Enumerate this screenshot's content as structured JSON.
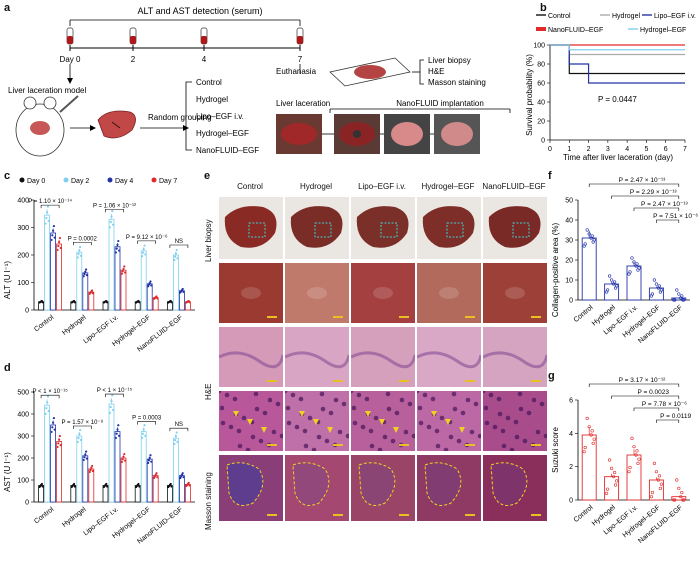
{
  "panel_a": {
    "label": "a",
    "timeline_title": "ALT and AST detection (serum)",
    "days": [
      "Day 0",
      "2",
      "4",
      "7"
    ],
    "model": "Liver laceration model",
    "grouping": "Random grouping",
    "groups": [
      "Control",
      "Hydrogel",
      "Lipo–EGF i.v.",
      "Hydrogel–EGF",
      "NanoFLUID–EGF"
    ],
    "euthanasia": "Euthanasia",
    "analyses": [
      "Liver biopsy",
      "H&E",
      "Masson staining"
    ],
    "photo_label_1": "Liver laceration",
    "photo_label_2": "NanoFLUID implantation"
  },
  "panel_b": {
    "label": "b",
    "legend": [
      "Control",
      "Hydrogel",
      "Lipo–EGF i.v.",
      "NanoFLUID–EGF",
      "Hydrogel–EGF"
    ],
    "pvalue": "P = 0.0447",
    "xlabel": "Time after liver laceration (day)",
    "ylabel": "Survival probability (%)"
  },
  "panel_c": {
    "label": "c",
    "ylabel": "ALT (U l⁻¹)",
    "legend": [
      "Day 0",
      "Day 2",
      "Day 4",
      "Day 7"
    ],
    "pvals": [
      "P = 1.10 × 10⁻¹⁴",
      "P = 0.0002",
      "P = 1.06 × 10⁻¹²",
      "P = 9.12 × 10⁻⁶",
      "NS"
    ]
  },
  "panel_d": {
    "label": "d",
    "ylabel": "AST (U l⁻¹)",
    "pvals": [
      "P < 1 × 10⁻¹⁵",
      "P = 1.57 × 10⁻⁸",
      "P < 1 × 10⁻¹⁵",
      "P = 0.0003",
      "NS"
    ]
  },
  "panel_e": {
    "label": "e",
    "rows": [
      "Liver biopsy",
      "H&E",
      "Masson staining"
    ]
  },
  "panel_f": {
    "label": "f",
    "ylabel": "Collagen-positive area (%)",
    "pvals": [
      "P = 2.47 × 10⁻¹³",
      "P = 2.29 × 10⁻¹³",
      "P = 2.47 × 10⁻¹³",
      "P = 7.51 × 10⁻⁶"
    ]
  },
  "panel_g": {
    "label": "g",
    "ylabel": "Suzuki score",
    "pvals": [
      "P = 3.17 × 10⁻¹²",
      "P = 0.0023",
      "P = 7.78 × 10⁻⁶",
      "P = 0.0119"
    ]
  },
  "colors": {
    "day0": "#111111",
    "day2": "#7fd0ee",
    "day4": "#2434a8",
    "day7": "#e02b2b"
  },
  "chart_data": [
    {
      "type": "line",
      "panel": "b",
      "x": [
        0,
        1,
        2,
        3,
        4,
        5,
        6,
        7
      ],
      "xlim": [
        0,
        7
      ],
      "ylim": [
        0,
        100
      ],
      "xticks": [
        0,
        1,
        2,
        3,
        4,
        5,
        6,
        7
      ],
      "yticks": [
        0,
        20,
        40,
        60,
        80,
        100
      ],
      "series": [
        {
          "name": "Control",
          "values": [
            100,
            70,
            70,
            70,
            70,
            70,
            70,
            70
          ],
          "color": "#111111"
        },
        {
          "name": "Hydrogel",
          "values": [
            100,
            90,
            90,
            90,
            90,
            90,
            90,
            90
          ],
          "color": "#aaaaaa"
        },
        {
          "name": "Lipo–EGF i.v.",
          "values": [
            100,
            80,
            60,
            60,
            60,
            60,
            60,
            60
          ],
          "color": "#2434a8"
        },
        {
          "name": "NanoFLUID–EGF",
          "values": [
            100,
            100,
            100,
            100,
            100,
            100,
            100,
            100
          ],
          "color": "#e02b2b"
        },
        {
          "name": "Hydrogel–EGF",
          "values": [
            100,
            95,
            95,
            95,
            95,
            95,
            95,
            95
          ],
          "color": "#7fd0ee"
        }
      ]
    },
    {
      "type": "bar",
      "panel": "c",
      "categories": [
        "Control",
        "Hydrogel",
        "Lipo–EGF i.v.",
        "Hydrogel–EGF",
        "NanoFLUID–EGF"
      ],
      "ylim": [
        0,
        400
      ],
      "yticks": [
        0,
        100,
        200,
        300,
        400
      ],
      "series": [
        {
          "name": "Day 0",
          "values": [
            30,
            30,
            30,
            30,
            30
          ]
        },
        {
          "name": "Day 2",
          "values": [
            345,
            210,
            330,
            215,
            200
          ]
        },
        {
          "name": "Day 4",
          "values": [
            280,
            135,
            230,
            95,
            70
          ]
        },
        {
          "name": "Day 7",
          "values": [
            240,
            65,
            145,
            45,
            30
          ]
        }
      ]
    },
    {
      "type": "bar",
      "panel": "d",
      "categories": [
        "Control",
        "Hydrogel",
        "Lipo–EGF i.v.",
        "Hydrogel–EGF",
        "NanoFLUID–EGF"
      ],
      "ylim": [
        0,
        500
      ],
      "yticks": [
        0,
        100,
        200,
        300,
        400,
        500
      ],
      "series": [
        {
          "name": "Day 0",
          "values": [
            75,
            75,
            75,
            75,
            75
          ]
        },
        {
          "name": "Day 2",
          "values": [
            440,
            300,
            445,
            320,
            290
          ]
        },
        {
          "name": "Day 4",
          "values": [
            350,
            210,
            320,
            195,
            120
          ]
        },
        {
          "name": "Day 7",
          "values": [
            275,
            150,
            200,
            120,
            80
          ]
        }
      ]
    },
    {
      "type": "bar",
      "panel": "f",
      "categories": [
        "Control",
        "Hydrogel",
        "Lipo–EGF i.v.",
        "Hydrogel–EGF",
        "NanoFLUID–EGF"
      ],
      "ylim": [
        0,
        50
      ],
      "yticks": [
        0,
        10,
        20,
        30,
        40,
        50
      ],
      "values": [
        31,
        8,
        17,
        6,
        1
      ]
    },
    {
      "type": "bar",
      "panel": "g",
      "categories": [
        "Control",
        "Hydrogel",
        "Lipo–EGF i.v.",
        "Hydrogel–EGF",
        "NanoFLUID–EGF"
      ],
      "ylim": [
        0,
        6
      ],
      "yticks": [
        0,
        2,
        4,
        6
      ],
      "values": [
        3.9,
        1.4,
        2.7,
        1.2,
        0.2
      ]
    }
  ]
}
